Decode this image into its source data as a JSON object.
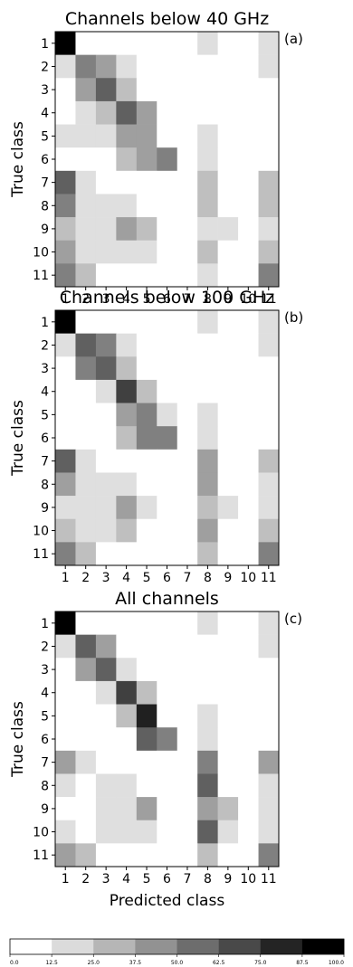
{
  "chart_data": {
    "type": "heatmap",
    "xlabel": "Predicted class",
    "ylabel": "True class",
    "categories": [
      "1",
      "2",
      "3",
      "4",
      "5",
      "6",
      "7",
      "8",
      "9",
      "10",
      "11"
    ],
    "colorbar": {
      "range": [
        0,
        100
      ],
      "ticks": [
        "0.0",
        "12.5",
        "25.0",
        "37.5",
        "50.0",
        "62.5",
        "75.0",
        "87.5",
        "100.0"
      ]
    },
    "panels": [
      {
        "title": "Channels below 40 GHz",
        "label": "(a)",
        "matrix": [
          [
            100,
            0,
            0,
            0,
            0,
            0,
            0,
            8,
            0,
            0,
            8
          ],
          [
            8,
            45,
            35,
            8,
            0,
            0,
            0,
            0,
            0,
            0,
            8
          ],
          [
            0,
            28,
            50,
            20,
            0,
            0,
            0,
            0,
            0,
            0,
            0
          ],
          [
            0,
            8,
            20,
            52,
            28,
            0,
            0,
            0,
            0,
            0,
            0
          ],
          [
            8,
            8,
            8,
            35,
            35,
            0,
            0,
            8,
            0,
            0,
            0
          ],
          [
            0,
            0,
            0,
            18,
            28,
            38,
            0,
            8,
            0,
            0,
            0
          ],
          [
            50,
            8,
            0,
            0,
            0,
            0,
            0,
            18,
            0,
            0,
            18
          ],
          [
            38,
            8,
            8,
            8,
            0,
            0,
            0,
            18,
            0,
            0,
            18
          ],
          [
            18,
            8,
            8,
            28,
            18,
            0,
            0,
            8,
            8,
            0,
            8
          ],
          [
            28,
            8,
            8,
            8,
            8,
            0,
            0,
            18,
            0,
            0,
            18
          ],
          [
            38,
            20,
            0,
            0,
            0,
            0,
            0,
            8,
            0,
            0,
            38
          ]
        ]
      },
      {
        "title": "Channels below 100 GHz",
        "label": "(b)",
        "matrix": [
          [
            100,
            0,
            0,
            0,
            0,
            0,
            0,
            8,
            0,
            0,
            8
          ],
          [
            8,
            55,
            38,
            8,
            0,
            0,
            0,
            0,
            0,
            0,
            8
          ],
          [
            0,
            38,
            50,
            18,
            0,
            0,
            0,
            0,
            0,
            0,
            0
          ],
          [
            0,
            0,
            8,
            72,
            18,
            0,
            0,
            0,
            0,
            0,
            0
          ],
          [
            0,
            0,
            0,
            32,
            45,
            8,
            0,
            8,
            0,
            0,
            0
          ],
          [
            0,
            0,
            0,
            18,
            38,
            38,
            0,
            8,
            0,
            0,
            0
          ],
          [
            50,
            8,
            0,
            0,
            0,
            0,
            0,
            28,
            0,
            0,
            18
          ],
          [
            28,
            8,
            8,
            8,
            0,
            0,
            0,
            35,
            0,
            0,
            8
          ],
          [
            8,
            8,
            8,
            28,
            8,
            0,
            0,
            18,
            8,
            0,
            8
          ],
          [
            18,
            8,
            8,
            18,
            0,
            0,
            0,
            28,
            0,
            0,
            18
          ],
          [
            38,
            18,
            0,
            0,
            0,
            0,
            0,
            18,
            0,
            0,
            38
          ]
        ]
      },
      {
        "title": "All channels",
        "label": "(c)",
        "matrix": [
          [
            100,
            0,
            0,
            0,
            0,
            0,
            0,
            8,
            0,
            0,
            8
          ],
          [
            8,
            62,
            28,
            0,
            0,
            0,
            0,
            0,
            0,
            0,
            8
          ],
          [
            0,
            28,
            62,
            8,
            0,
            0,
            0,
            0,
            0,
            0,
            0
          ],
          [
            0,
            0,
            8,
            72,
            18,
            0,
            0,
            0,
            0,
            0,
            0
          ],
          [
            0,
            0,
            0,
            18,
            75,
            0,
            0,
            8,
            0,
            0,
            0
          ],
          [
            0,
            0,
            0,
            0,
            55,
            45,
            0,
            8,
            0,
            0,
            0
          ],
          [
            28,
            8,
            0,
            0,
            0,
            0,
            0,
            38,
            0,
            0,
            28
          ],
          [
            8,
            0,
            8,
            8,
            0,
            0,
            0,
            58,
            0,
            0,
            8
          ],
          [
            0,
            0,
            8,
            8,
            28,
            0,
            0,
            28,
            18,
            0,
            8
          ],
          [
            8,
            0,
            8,
            8,
            8,
            0,
            0,
            62,
            8,
            0,
            8
          ],
          [
            28,
            18,
            0,
            0,
            0,
            0,
            0,
            18,
            0,
            0,
            38
          ]
        ]
      }
    ]
  }
}
